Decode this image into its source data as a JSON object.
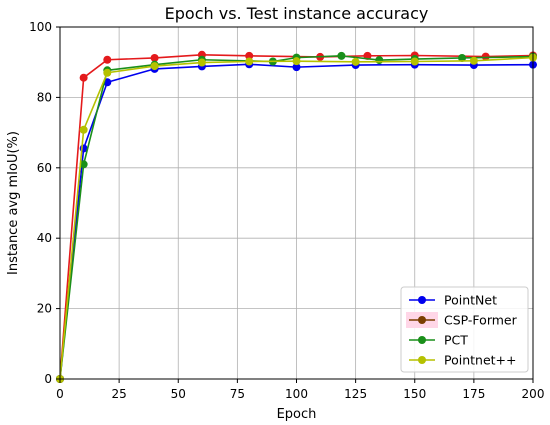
{
  "chart_data": {
    "type": "line",
    "title": "Epoch vs. Test instance accuracy",
    "xlabel": "Epoch",
    "ylabel": "Instance avg mIoU(%)",
    "xlim": [
      0,
      200
    ],
    "ylim": [
      0,
      100
    ],
    "xticks": [
      0,
      25,
      50,
      75,
      100,
      125,
      150,
      175,
      200
    ],
    "yticks": [
      0,
      20,
      40,
      60,
      80,
      100
    ],
    "grid": true,
    "legend_position": "lower-right",
    "series": [
      {
        "name": "PointNet",
        "color": "#0000ee",
        "marker": "circle",
        "points": [
          [
            0,
            0
          ],
          [
            10,
            65.5
          ],
          [
            20,
            84.3
          ],
          [
            40,
            88.1
          ],
          [
            60,
            88.8
          ],
          [
            80,
            89.4
          ],
          [
            100,
            88.6
          ],
          [
            125,
            89.2
          ],
          [
            150,
            89.3
          ],
          [
            175,
            89.2
          ],
          [
            200,
            89.3
          ]
        ]
      },
      {
        "name": "CSP-Former",
        "color": "#e41a1c",
        "legend_color": "#7b3f00",
        "marker": "circle",
        "points": [
          [
            0,
            0
          ],
          [
            10,
            85.6
          ],
          [
            20,
            90.7
          ],
          [
            40,
            91.2
          ],
          [
            60,
            92.1
          ],
          [
            80,
            91.8
          ],
          [
            110,
            91.5
          ],
          [
            130,
            91.8
          ],
          [
            150,
            91.9
          ],
          [
            180,
            91.6
          ],
          [
            200,
            91.9
          ]
        ]
      },
      {
        "name": "PCT",
        "color": "#1a8f1a",
        "marker": "circle",
        "points": [
          [
            0,
            0
          ],
          [
            10,
            61.0
          ],
          [
            20,
            87.7
          ],
          [
            40,
            89.3
          ],
          [
            60,
            90.7
          ],
          [
            90,
            90.2
          ],
          [
            100,
            91.3
          ],
          [
            119,
            91.8
          ],
          [
            135,
            90.6
          ],
          [
            150,
            90.9
          ],
          [
            170,
            91.2
          ],
          [
            200,
            91.6
          ]
        ]
      },
      {
        "name": "Pointnet++",
        "color": "#b5c100",
        "marker": "circle",
        "points": [
          [
            0,
            0
          ],
          [
            10,
            70.8
          ],
          [
            20,
            87.0
          ],
          [
            40,
            88.9
          ],
          [
            60,
            89.9
          ],
          [
            80,
            90.2
          ],
          [
            100,
            90.3
          ],
          [
            125,
            90.1
          ],
          [
            150,
            90.2
          ],
          [
            175,
            90.4
          ],
          [
            200,
            91.3
          ]
        ]
      }
    ]
  }
}
